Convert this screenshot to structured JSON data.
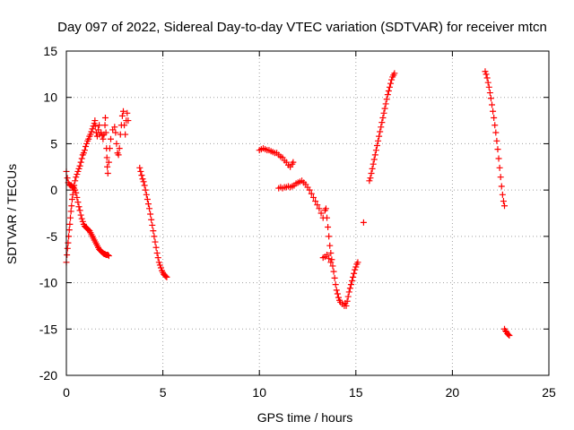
{
  "chart_data": {
    "type": "scatter",
    "title": "Day 097 of 2022, Sidereal Day-to-day VTEC variation (SDTVAR) for receiver mtcn",
    "xlabel": "GPS time / hours",
    "ylabel": "SDTVAR / TECUs",
    "xlim": [
      0,
      25
    ],
    "ylim": [
      -20,
      15
    ],
    "xticks": [
      0,
      5,
      10,
      15,
      20,
      25
    ],
    "yticks": [
      -20,
      -15,
      -10,
      -5,
      0,
      5,
      10,
      15
    ],
    "grid": true,
    "marker": "+",
    "color": "#ff0000",
    "series": [
      {
        "name": "seg-1",
        "points": [
          [
            0.0,
            -7.8
          ],
          [
            0.03,
            -7.0
          ],
          [
            0.06,
            -6.3
          ],
          [
            0.09,
            -5.7
          ],
          [
            0.12,
            -5.0
          ],
          [
            0.15,
            -4.3
          ],
          [
            0.18,
            -3.7
          ],
          [
            0.21,
            -3.0
          ],
          [
            0.24,
            -2.3
          ],
          [
            0.27,
            -1.7
          ],
          [
            0.3,
            -1.0
          ],
          [
            0.33,
            -0.5
          ],
          [
            0.36,
            0.0
          ],
          [
            0.4,
            0.5
          ],
          [
            0.45,
            1.0
          ],
          [
            0.5,
            1.4
          ],
          [
            0.55,
            1.7
          ],
          [
            0.6,
            2.0
          ],
          [
            0.65,
            2.3
          ],
          [
            0.7,
            2.6
          ],
          [
            0.75,
            3.0
          ],
          [
            0.8,
            3.4
          ],
          [
            0.85,
            3.8
          ],
          [
            0.9,
            4.0
          ],
          [
            0.95,
            4.3
          ],
          [
            1.0,
            4.7
          ],
          [
            1.05,
            5.0
          ],
          [
            1.1,
            5.3
          ],
          [
            1.15,
            5.5
          ],
          [
            1.2,
            5.8
          ],
          [
            1.25,
            6.0
          ],
          [
            1.3,
            6.3
          ],
          [
            1.35,
            6.6
          ],
          [
            1.4,
            6.9
          ],
          [
            1.45,
            7.2
          ],
          [
            1.48,
            7.5
          ],
          [
            1.5,
            6.9
          ],
          [
            1.55,
            6.2
          ],
          [
            1.6,
            5.8
          ],
          [
            1.65,
            6.5
          ],
          [
            1.7,
            7.0
          ],
          [
            1.72,
            6.0
          ],
          [
            1.8,
            6.2
          ],
          [
            1.85,
            5.9
          ],
          [
            1.9,
            5.5
          ],
          [
            1.95,
            6.0
          ],
          [
            2.0,
            7.0
          ],
          [
            2.02,
            7.8
          ],
          [
            2.05,
            6.2
          ],
          [
            2.08,
            4.5
          ],
          [
            2.1,
            3.5
          ],
          [
            2.12,
            2.5
          ],
          [
            2.15,
            1.8
          ],
          [
            2.2,
            3.0
          ],
          [
            2.25,
            4.5
          ],
          [
            2.3,
            5.5
          ],
          [
            2.4,
            6.5
          ],
          [
            2.5,
            6.8
          ],
          [
            2.55,
            6.2
          ],
          [
            2.6,
            5.0
          ],
          [
            2.65,
            4.0
          ],
          [
            2.7,
            3.8
          ],
          [
            2.75,
            4.5
          ],
          [
            2.8,
            6.0
          ],
          [
            2.85,
            7.0
          ],
          [
            2.9,
            8.0
          ],
          [
            2.95,
            8.5
          ],
          [
            3.0,
            7.0
          ],
          [
            3.05,
            6.0
          ],
          [
            3.1,
            7.5
          ],
          [
            3.15,
            8.3
          ],
          [
            3.2,
            7.5
          ]
        ]
      },
      {
        "name": "seg-2",
        "points": [
          [
            0.0,
            2.0
          ],
          [
            0.05,
            1.3
          ],
          [
            0.1,
            0.8
          ],
          [
            0.15,
            0.6
          ],
          [
            0.2,
            0.5
          ],
          [
            0.25,
            0.5
          ],
          [
            0.3,
            0.4
          ],
          [
            0.35,
            0.3
          ],
          [
            0.4,
            0.2
          ],
          [
            0.45,
            0.0
          ],
          [
            0.5,
            -0.3
          ],
          [
            0.55,
            -0.8
          ],
          [
            0.6,
            -1.3
          ],
          [
            0.65,
            -1.8
          ],
          [
            0.7,
            -2.2
          ],
          [
            0.75,
            -2.7
          ],
          [
            0.8,
            -3.1
          ],
          [
            0.85,
            -3.4
          ],
          [
            0.9,
            -3.7
          ],
          [
            0.95,
            -3.9
          ],
          [
            1.0,
            -4.0
          ],
          [
            1.05,
            -4.1
          ],
          [
            1.1,
            -4.2
          ],
          [
            1.15,
            -4.3
          ],
          [
            1.2,
            -4.4
          ],
          [
            1.25,
            -4.6
          ],
          [
            1.3,
            -4.8
          ],
          [
            1.35,
            -5.0
          ],
          [
            1.4,
            -5.2
          ],
          [
            1.45,
            -5.4
          ],
          [
            1.5,
            -5.6
          ],
          [
            1.55,
            -5.8
          ],
          [
            1.6,
            -6.0
          ],
          [
            1.65,
            -6.2
          ],
          [
            1.7,
            -6.4
          ],
          [
            1.75,
            -6.5
          ],
          [
            1.8,
            -6.6
          ],
          [
            1.85,
            -6.7
          ],
          [
            1.9,
            -6.8
          ],
          [
            1.95,
            -6.9
          ],
          [
            2.0,
            -6.9
          ],
          [
            2.05,
            -7.0
          ],
          [
            2.1,
            -7.0
          ],
          [
            2.15,
            -7.0
          ],
          [
            2.2,
            -7.1
          ]
        ]
      },
      {
        "name": "seg-3",
        "points": [
          [
            3.8,
            2.4
          ],
          [
            3.85,
            2.0
          ],
          [
            3.9,
            1.6
          ],
          [
            3.95,
            1.2
          ],
          [
            4.0,
            0.9
          ],
          [
            4.05,
            0.5
          ],
          [
            4.1,
            0.0
          ],
          [
            4.15,
            -0.5
          ],
          [
            4.2,
            -1.0
          ],
          [
            4.25,
            -1.5
          ],
          [
            4.3,
            -2.0
          ],
          [
            4.35,
            -2.6
          ],
          [
            4.4,
            -3.2
          ],
          [
            4.45,
            -3.8
          ],
          [
            4.5,
            -4.4
          ],
          [
            4.55,
            -5.0
          ],
          [
            4.6,
            -5.6
          ],
          [
            4.65,
            -6.2
          ],
          [
            4.7,
            -6.8
          ],
          [
            4.75,
            -7.3
          ],
          [
            4.8,
            -7.8
          ],
          [
            4.85,
            -8.1
          ],
          [
            4.9,
            -8.4
          ],
          [
            4.95,
            -8.7
          ],
          [
            5.0,
            -8.9
          ],
          [
            5.05,
            -9.1
          ],
          [
            5.1,
            -9.2
          ],
          [
            5.15,
            -9.3
          ],
          [
            5.2,
            -9.4
          ]
        ]
      },
      {
        "name": "seg-4",
        "points": [
          [
            10.0,
            4.3
          ],
          [
            10.1,
            4.4
          ],
          [
            10.2,
            4.5
          ],
          [
            10.3,
            4.4
          ],
          [
            10.4,
            4.3
          ],
          [
            10.5,
            4.3
          ],
          [
            10.6,
            4.2
          ],
          [
            10.7,
            4.1
          ],
          [
            10.8,
            4.0
          ],
          [
            10.9,
            4.0
          ],
          [
            11.0,
            3.8
          ],
          [
            11.1,
            3.6
          ],
          [
            11.2,
            3.5
          ],
          [
            11.3,
            3.2
          ],
          [
            11.4,
            3.0
          ],
          [
            11.5,
            2.7
          ],
          [
            11.6,
            2.5
          ],
          [
            11.7,
            2.8
          ],
          [
            11.75,
            3.0
          ]
        ]
      },
      {
        "name": "seg-5",
        "points": [
          [
            11.0,
            0.2
          ],
          [
            11.1,
            0.3
          ],
          [
            11.2,
            0.2
          ],
          [
            11.3,
            0.3
          ],
          [
            11.4,
            0.3
          ],
          [
            11.5,
            0.4
          ],
          [
            11.6,
            0.3
          ],
          [
            11.7,
            0.4
          ],
          [
            11.8,
            0.5
          ],
          [
            11.9,
            0.7
          ],
          [
            12.0,
            0.8
          ],
          [
            12.1,
            0.9
          ],
          [
            12.2,
            1.0
          ],
          [
            12.3,
            0.8
          ],
          [
            12.4,
            0.6
          ],
          [
            12.5,
            0.3
          ],
          [
            12.6,
            0.0
          ],
          [
            12.7,
            -0.4
          ],
          [
            12.8,
            -0.8
          ],
          [
            12.9,
            -1.2
          ],
          [
            13.0,
            -1.6
          ],
          [
            13.1,
            -2.0
          ],
          [
            13.2,
            -2.5
          ],
          [
            13.3,
            -3.0
          ],
          [
            13.4,
            -2.2
          ],
          [
            13.45,
            -2.0
          ],
          [
            13.5,
            -3.0
          ],
          [
            13.55,
            -4.0
          ],
          [
            13.6,
            -5.0
          ],
          [
            13.65,
            -6.0
          ],
          [
            13.7,
            -6.8
          ],
          [
            13.75,
            -7.5
          ],
          [
            13.8,
            -8.2
          ],
          [
            13.85,
            -8.8
          ],
          [
            13.9,
            -9.5
          ],
          [
            13.95,
            -10.2
          ],
          [
            14.0,
            -10.8
          ],
          [
            14.05,
            -11.2
          ],
          [
            14.1,
            -11.6
          ],
          [
            14.15,
            -11.9
          ],
          [
            14.2,
            -12.1
          ],
          [
            14.3,
            -12.3
          ],
          [
            14.4,
            -12.5
          ],
          [
            14.45,
            -12.2
          ],
          [
            14.5,
            -12.5
          ],
          [
            14.55,
            -12.0
          ],
          [
            14.6,
            -11.5
          ],
          [
            14.65,
            -11.0
          ],
          [
            14.7,
            -10.6
          ],
          [
            14.75,
            -10.2
          ],
          [
            14.8,
            -9.8
          ],
          [
            14.85,
            -9.4
          ],
          [
            14.9,
            -9.0
          ],
          [
            14.95,
            -8.6
          ],
          [
            15.0,
            -8.3
          ],
          [
            15.05,
            -8.0
          ],
          [
            15.1,
            -7.8
          ]
        ]
      },
      {
        "name": "seg-6",
        "points": [
          [
            13.3,
            -7.3
          ],
          [
            13.4,
            -7.2
          ],
          [
            13.5,
            -7.0
          ],
          [
            13.6,
            -7.4
          ],
          [
            13.7,
            -7.8
          ]
        ]
      },
      {
        "name": "seg-7",
        "points": [
          [
            15.4,
            -3.5
          ]
        ]
      },
      {
        "name": "seg-8",
        "points": [
          [
            15.7,
            1.0
          ],
          [
            15.75,
            1.3
          ],
          [
            15.8,
            1.8
          ],
          [
            15.85,
            2.3
          ],
          [
            15.9,
            2.8
          ],
          [
            15.95,
            3.3
          ],
          [
            16.0,
            3.8
          ],
          [
            16.05,
            4.3
          ],
          [
            16.1,
            4.8
          ],
          [
            16.15,
            5.3
          ],
          [
            16.2,
            5.8
          ],
          [
            16.25,
            6.3
          ],
          [
            16.3,
            6.8
          ],
          [
            16.35,
            7.3
          ],
          [
            16.4,
            7.8
          ],
          [
            16.45,
            8.3
          ],
          [
            16.5,
            8.8
          ],
          [
            16.55,
            9.3
          ],
          [
            16.6,
            9.8
          ],
          [
            16.65,
            10.3
          ],
          [
            16.7,
            10.7
          ],
          [
            16.75,
            11.1
          ],
          [
            16.8,
            11.5
          ],
          [
            16.85,
            11.9
          ],
          [
            16.9,
            12.2
          ],
          [
            16.95,
            12.4
          ],
          [
            17.0,
            12.6
          ]
        ]
      },
      {
        "name": "seg-9",
        "points": [
          [
            21.7,
            12.8
          ],
          [
            21.75,
            12.5
          ],
          [
            21.8,
            12.1
          ],
          [
            21.85,
            11.6
          ],
          [
            21.9,
            11.1
          ],
          [
            21.95,
            10.5
          ],
          [
            22.0,
            9.9
          ],
          [
            22.05,
            9.2
          ],
          [
            22.1,
            8.5
          ],
          [
            22.15,
            7.8
          ],
          [
            22.2,
            7.0
          ],
          [
            22.25,
            6.2
          ],
          [
            22.3,
            5.3
          ],
          [
            22.35,
            4.4
          ],
          [
            22.4,
            3.4
          ],
          [
            22.45,
            2.4
          ],
          [
            22.5,
            1.4
          ],
          [
            22.55,
            0.4
          ],
          [
            22.6,
            -0.5
          ],
          [
            22.65,
            -1.2
          ],
          [
            22.7,
            -1.7
          ]
        ]
      },
      {
        "name": "seg-10",
        "points": [
          [
            22.7,
            -15.0
          ],
          [
            22.75,
            -15.2
          ],
          [
            22.8,
            -15.3
          ],
          [
            22.85,
            -15.5
          ],
          [
            22.9,
            -15.6
          ],
          [
            22.95,
            -15.7
          ]
        ]
      }
    ]
  }
}
